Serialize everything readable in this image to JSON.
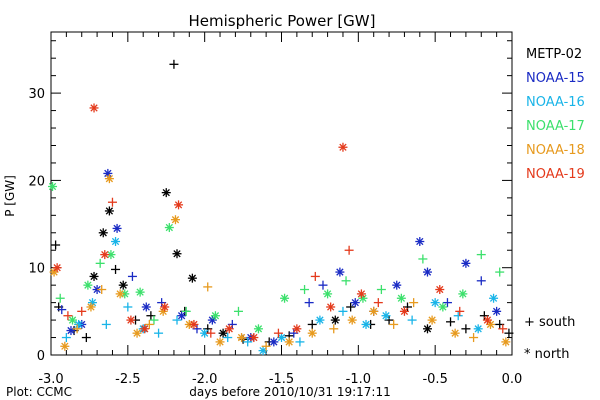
{
  "chart_data": {
    "type": "scatter",
    "title": "Hemispheric Power [GW]",
    "xlabel": "days before 2010/10/31 19:17:11",
    "ylabel": "P [GW]",
    "xlim": [
      -3.0,
      0.0
    ],
    "ylim": [
      0,
      37
    ],
    "xticks": [
      "-3.0",
      "-2.5",
      "-2.0",
      "-1.5",
      "-1.0",
      "-0.5",
      "0.0"
    ],
    "yticks": [
      "0",
      "10",
      "20",
      "30"
    ],
    "credit": "Plot: CCMC",
    "grid": false,
    "legend_position": "right",
    "marker_key": [
      {
        "label": "+ south",
        "marker": "plus"
      },
      {
        "label": "* north",
        "marker": "asterisk"
      }
    ],
    "series": [
      {
        "name": "METP-02",
        "color": "#000000",
        "points": [
          {
            "x": -2.97,
            "y": 12.6,
            "m": "plus"
          },
          {
            "x": -2.95,
            "y": 5.5,
            "m": "plus"
          },
          {
            "x": -2.85,
            "y": 2.8,
            "m": "plus"
          },
          {
            "x": -2.77,
            "y": 2.0,
            "m": "plus"
          },
          {
            "x": -2.72,
            "y": 9.0,
            "m": "star"
          },
          {
            "x": -2.66,
            "y": 14.0,
            "m": "star"
          },
          {
            "x": -2.62,
            "y": 16.5,
            "m": "star"
          },
          {
            "x": -2.58,
            "y": 9.8,
            "m": "plus"
          },
          {
            "x": -2.53,
            "y": 8.0,
            "m": "star"
          },
          {
            "x": -2.45,
            "y": 4.0,
            "m": "plus"
          },
          {
            "x": -2.35,
            "y": 4.5,
            "m": "plus"
          },
          {
            "x": -2.25,
            "y": 18.6,
            "m": "star"
          },
          {
            "x": -2.2,
            "y": 33.3,
            "m": "plus"
          },
          {
            "x": -2.18,
            "y": 11.6,
            "m": "star"
          },
          {
            "x": -2.13,
            "y": 5.0,
            "m": "plus"
          },
          {
            "x": -2.08,
            "y": 8.8,
            "m": "star"
          },
          {
            "x": -1.98,
            "y": 3.0,
            "m": "plus"
          },
          {
            "x": -1.88,
            "y": 2.5,
            "m": "star"
          },
          {
            "x": -1.75,
            "y": 1.8,
            "m": "plus"
          },
          {
            "x": -1.58,
            "y": 1.5,
            "m": "plus"
          },
          {
            "x": -1.45,
            "y": 2.2,
            "m": "plus"
          },
          {
            "x": -1.3,
            "y": 3.5,
            "m": "plus"
          },
          {
            "x": -1.15,
            "y": 4.0,
            "m": "star"
          },
          {
            "x": -1.05,
            "y": 5.5,
            "m": "plus"
          },
          {
            "x": -0.92,
            "y": 3.5,
            "m": "plus"
          },
          {
            "x": -0.8,
            "y": 4.0,
            "m": "plus"
          },
          {
            "x": -0.68,
            "y": 5.5,
            "m": "plus"
          },
          {
            "x": -0.55,
            "y": 3.0,
            "m": "star"
          },
          {
            "x": -0.4,
            "y": 3.8,
            "m": "plus"
          },
          {
            "x": -0.3,
            "y": 3.0,
            "m": "plus"
          },
          {
            "x": -0.18,
            "y": 4.5,
            "m": "plus"
          },
          {
            "x": -0.08,
            "y": 3.5,
            "m": "plus"
          },
          {
            "x": -0.02,
            "y": 2.5,
            "m": "plus"
          }
        ]
      },
      {
        "name": "NOAA-15",
        "color": "#1a2bc4",
        "points": [
          {
            "x": -2.93,
            "y": 5.2,
            "m": "plus"
          },
          {
            "x": -2.87,
            "y": 2.8,
            "m": "star"
          },
          {
            "x": -2.8,
            "y": 3.5,
            "m": "star"
          },
          {
            "x": -2.7,
            "y": 7.5,
            "m": "star"
          },
          {
            "x": -2.63,
            "y": 20.8,
            "m": "star"
          },
          {
            "x": -2.57,
            "y": 14.5,
            "m": "star"
          },
          {
            "x": -2.47,
            "y": 9.0,
            "m": "plus"
          },
          {
            "x": -2.38,
            "y": 5.5,
            "m": "star"
          },
          {
            "x": -2.28,
            "y": 6.0,
            "m": "plus"
          },
          {
            "x": -2.15,
            "y": 4.5,
            "m": "star"
          },
          {
            "x": -2.05,
            "y": 3.0,
            "m": "plus"
          },
          {
            "x": -1.95,
            "y": 4.0,
            "m": "star"
          },
          {
            "x": -1.82,
            "y": 3.5,
            "m": "plus"
          },
          {
            "x": -1.7,
            "y": 2.0,
            "m": "star"
          },
          {
            "x": -1.55,
            "y": 1.5,
            "m": "star"
          },
          {
            "x": -1.42,
            "y": 2.5,
            "m": "plus"
          },
          {
            "x": -1.32,
            "y": 6.0,
            "m": "plus"
          },
          {
            "x": -1.23,
            "y": 8.0,
            "m": "plus"
          },
          {
            "x": -1.12,
            "y": 9.5,
            "m": "star"
          },
          {
            "x": -1.02,
            "y": 6.0,
            "m": "star"
          },
          {
            "x": -0.9,
            "y": 5.0,
            "m": "plus"
          },
          {
            "x": -0.75,
            "y": 8.0,
            "m": "star"
          },
          {
            "x": -0.6,
            "y": 13.0,
            "m": "star"
          },
          {
            "x": -0.55,
            "y": 9.5,
            "m": "star"
          },
          {
            "x": -0.42,
            "y": 6.0,
            "m": "plus"
          },
          {
            "x": -0.3,
            "y": 10.5,
            "m": "star"
          },
          {
            "x": -0.2,
            "y": 8.5,
            "m": "plus"
          },
          {
            "x": -0.1,
            "y": 5.0,
            "m": "star"
          }
        ]
      },
      {
        "name": "NOAA-16",
        "color": "#19b4e8",
        "points": [
          {
            "x": -2.9,
            "y": 2.0,
            "m": "plus"
          },
          {
            "x": -2.82,
            "y": 3.5,
            "m": "star"
          },
          {
            "x": -2.73,
            "y": 6.0,
            "m": "star"
          },
          {
            "x": -2.64,
            "y": 3.5,
            "m": "plus"
          },
          {
            "x": -2.58,
            "y": 13.0,
            "m": "star"
          },
          {
            "x": -2.5,
            "y": 5.5,
            "m": "plus"
          },
          {
            "x": -2.4,
            "y": 3.0,
            "m": "star"
          },
          {
            "x": -2.3,
            "y": 2.5,
            "m": "plus"
          },
          {
            "x": -2.18,
            "y": 4.0,
            "m": "plus"
          },
          {
            "x": -2.0,
            "y": 2.5,
            "m": "star"
          },
          {
            "x": -1.85,
            "y": 2.0,
            "m": "plus"
          },
          {
            "x": -1.72,
            "y": 1.5,
            "m": "plus"
          },
          {
            "x": -1.62,
            "y": 0.5,
            "m": "star"
          },
          {
            "x": -1.5,
            "y": 2.0,
            "m": "star"
          },
          {
            "x": -1.38,
            "y": 1.5,
            "m": "plus"
          },
          {
            "x": -1.25,
            "y": 4.0,
            "m": "star"
          },
          {
            "x": -1.1,
            "y": 5.0,
            "m": "plus"
          },
          {
            "x": -0.95,
            "y": 3.5,
            "m": "star"
          },
          {
            "x": -0.82,
            "y": 4.5,
            "m": "star"
          },
          {
            "x": -0.65,
            "y": 4.0,
            "m": "plus"
          },
          {
            "x": -0.5,
            "y": 6.0,
            "m": "star"
          },
          {
            "x": -0.35,
            "y": 4.5,
            "m": "plus"
          },
          {
            "x": -0.22,
            "y": 3.0,
            "m": "star"
          },
          {
            "x": -0.12,
            "y": 6.5,
            "m": "star"
          }
        ]
      },
      {
        "name": "NOAA-17",
        "color": "#3ce06c",
        "points": [
          {
            "x": -2.99,
            "y": 19.3,
            "m": "star"
          },
          {
            "x": -2.94,
            "y": 6.5,
            "m": "plus"
          },
          {
            "x": -2.86,
            "y": 4.0,
            "m": "star"
          },
          {
            "x": -2.76,
            "y": 8.0,
            "m": "star"
          },
          {
            "x": -2.68,
            "y": 10.5,
            "m": "plus"
          },
          {
            "x": -2.61,
            "y": 11.5,
            "m": "star"
          },
          {
            "x": -2.52,
            "y": 7.0,
            "m": "star"
          },
          {
            "x": -2.42,
            "y": 7.2,
            "m": "star"
          },
          {
            "x": -2.33,
            "y": 4.0,
            "m": "plus"
          },
          {
            "x": -2.23,
            "y": 14.6,
            "m": "star"
          },
          {
            "x": -2.12,
            "y": 5.0,
            "m": "plus"
          },
          {
            "x": -1.93,
            "y": 4.5,
            "m": "star"
          },
          {
            "x": -1.78,
            "y": 5.0,
            "m": "plus"
          },
          {
            "x": -1.65,
            "y": 3.0,
            "m": "star"
          },
          {
            "x": -1.48,
            "y": 6.5,
            "m": "star"
          },
          {
            "x": -1.35,
            "y": 7.5,
            "m": "plus"
          },
          {
            "x": -1.2,
            "y": 7.0,
            "m": "star"
          },
          {
            "x": -1.08,
            "y": 8.5,
            "m": "plus"
          },
          {
            "x": -0.97,
            "y": 6.5,
            "m": "star"
          },
          {
            "x": -0.85,
            "y": 7.5,
            "m": "plus"
          },
          {
            "x": -0.72,
            "y": 6.5,
            "m": "star"
          },
          {
            "x": -0.58,
            "y": 11.0,
            "m": "plus"
          },
          {
            "x": -0.45,
            "y": 5.5,
            "m": "star"
          },
          {
            "x": -0.32,
            "y": 7.0,
            "m": "star"
          },
          {
            "x": -0.2,
            "y": 11.5,
            "m": "plus"
          },
          {
            "x": -0.08,
            "y": 9.5,
            "m": "plus"
          }
        ]
      },
      {
        "name": "NOAA-18",
        "color": "#e79a1e",
        "points": [
          {
            "x": -2.98,
            "y": 9.5,
            "m": "star"
          },
          {
            "x": -2.91,
            "y": 1.0,
            "m": "star"
          },
          {
            "x": -2.83,
            "y": 3.0,
            "m": "plus"
          },
          {
            "x": -2.74,
            "y": 5.5,
            "m": "star"
          },
          {
            "x": -2.67,
            "y": 7.5,
            "m": "plus"
          },
          {
            "x": -2.62,
            "y": 20.2,
            "m": "star"
          },
          {
            "x": -2.55,
            "y": 7.0,
            "m": "star"
          },
          {
            "x": -2.44,
            "y": 2.5,
            "m": "star"
          },
          {
            "x": -2.36,
            "y": 3.5,
            "m": "plus"
          },
          {
            "x": -2.27,
            "y": 5.0,
            "m": "star"
          },
          {
            "x": -2.19,
            "y": 15.5,
            "m": "star"
          },
          {
            "x": -2.1,
            "y": 3.5,
            "m": "star"
          },
          {
            "x": -1.98,
            "y": 7.8,
            "m": "plus"
          },
          {
            "x": -1.9,
            "y": 1.5,
            "m": "star"
          },
          {
            "x": -1.76,
            "y": 2.0,
            "m": "star"
          },
          {
            "x": -1.6,
            "y": 1.0,
            "m": "plus"
          },
          {
            "x": -1.45,
            "y": 1.5,
            "m": "star"
          },
          {
            "x": -1.3,
            "y": 2.5,
            "m": "star"
          },
          {
            "x": -1.16,
            "y": 3.0,
            "m": "plus"
          },
          {
            "x": -1.04,
            "y": 4.0,
            "m": "star"
          },
          {
            "x": -0.9,
            "y": 5.0,
            "m": "star"
          },
          {
            "x": -0.77,
            "y": 3.5,
            "m": "plus"
          },
          {
            "x": -0.64,
            "y": 6.0,
            "m": "plus"
          },
          {
            "x": -0.52,
            "y": 4.0,
            "m": "star"
          },
          {
            "x": -0.37,
            "y": 2.5,
            "m": "star"
          },
          {
            "x": -0.25,
            "y": 2.0,
            "m": "plus"
          },
          {
            "x": -0.14,
            "y": 3.5,
            "m": "star"
          },
          {
            "x": -0.04,
            "y": 1.5,
            "m": "star"
          }
        ]
      },
      {
        "name": "NOAA-19",
        "color": "#e43a1c",
        "points": [
          {
            "x": -2.96,
            "y": 10.0,
            "m": "star"
          },
          {
            "x": -2.89,
            "y": 4.5,
            "m": "plus"
          },
          {
            "x": -2.8,
            "y": 5.0,
            "m": "plus"
          },
          {
            "x": -2.72,
            "y": 28.3,
            "m": "star"
          },
          {
            "x": -2.65,
            "y": 11.5,
            "m": "star"
          },
          {
            "x": -2.6,
            "y": 17.5,
            "m": "plus"
          },
          {
            "x": -2.48,
            "y": 4.0,
            "m": "star"
          },
          {
            "x": -2.39,
            "y": 3.0,
            "m": "star"
          },
          {
            "x": -2.26,
            "y": 5.5,
            "m": "star"
          },
          {
            "x": -2.17,
            "y": 17.2,
            "m": "star"
          },
          {
            "x": -2.07,
            "y": 3.5,
            "m": "star"
          },
          {
            "x": -1.96,
            "y": 2.5,
            "m": "plus"
          },
          {
            "x": -1.84,
            "y": 3.0,
            "m": "star"
          },
          {
            "x": -1.68,
            "y": 2.0,
            "m": "star"
          },
          {
            "x": -1.52,
            "y": 2.5,
            "m": "plus"
          },
          {
            "x": -1.4,
            "y": 3.0,
            "m": "star"
          },
          {
            "x": -1.28,
            "y": 9.0,
            "m": "plus"
          },
          {
            "x": -1.18,
            "y": 5.5,
            "m": "star"
          },
          {
            "x": -1.1,
            "y": 23.8,
            "m": "star"
          },
          {
            "x": -1.06,
            "y": 12.0,
            "m": "plus"
          },
          {
            "x": -0.98,
            "y": 7.0,
            "m": "star"
          },
          {
            "x": -0.87,
            "y": 6.0,
            "m": "plus"
          },
          {
            "x": -0.7,
            "y": 5.0,
            "m": "star"
          },
          {
            "x": -0.47,
            "y": 7.5,
            "m": "star"
          },
          {
            "x": -0.34,
            "y": 5.0,
            "m": "plus"
          },
          {
            "x": -0.16,
            "y": 4.0,
            "m": "star"
          },
          {
            "x": -0.06,
            "y": 3.0,
            "m": "plus"
          }
        ]
      }
    ]
  }
}
